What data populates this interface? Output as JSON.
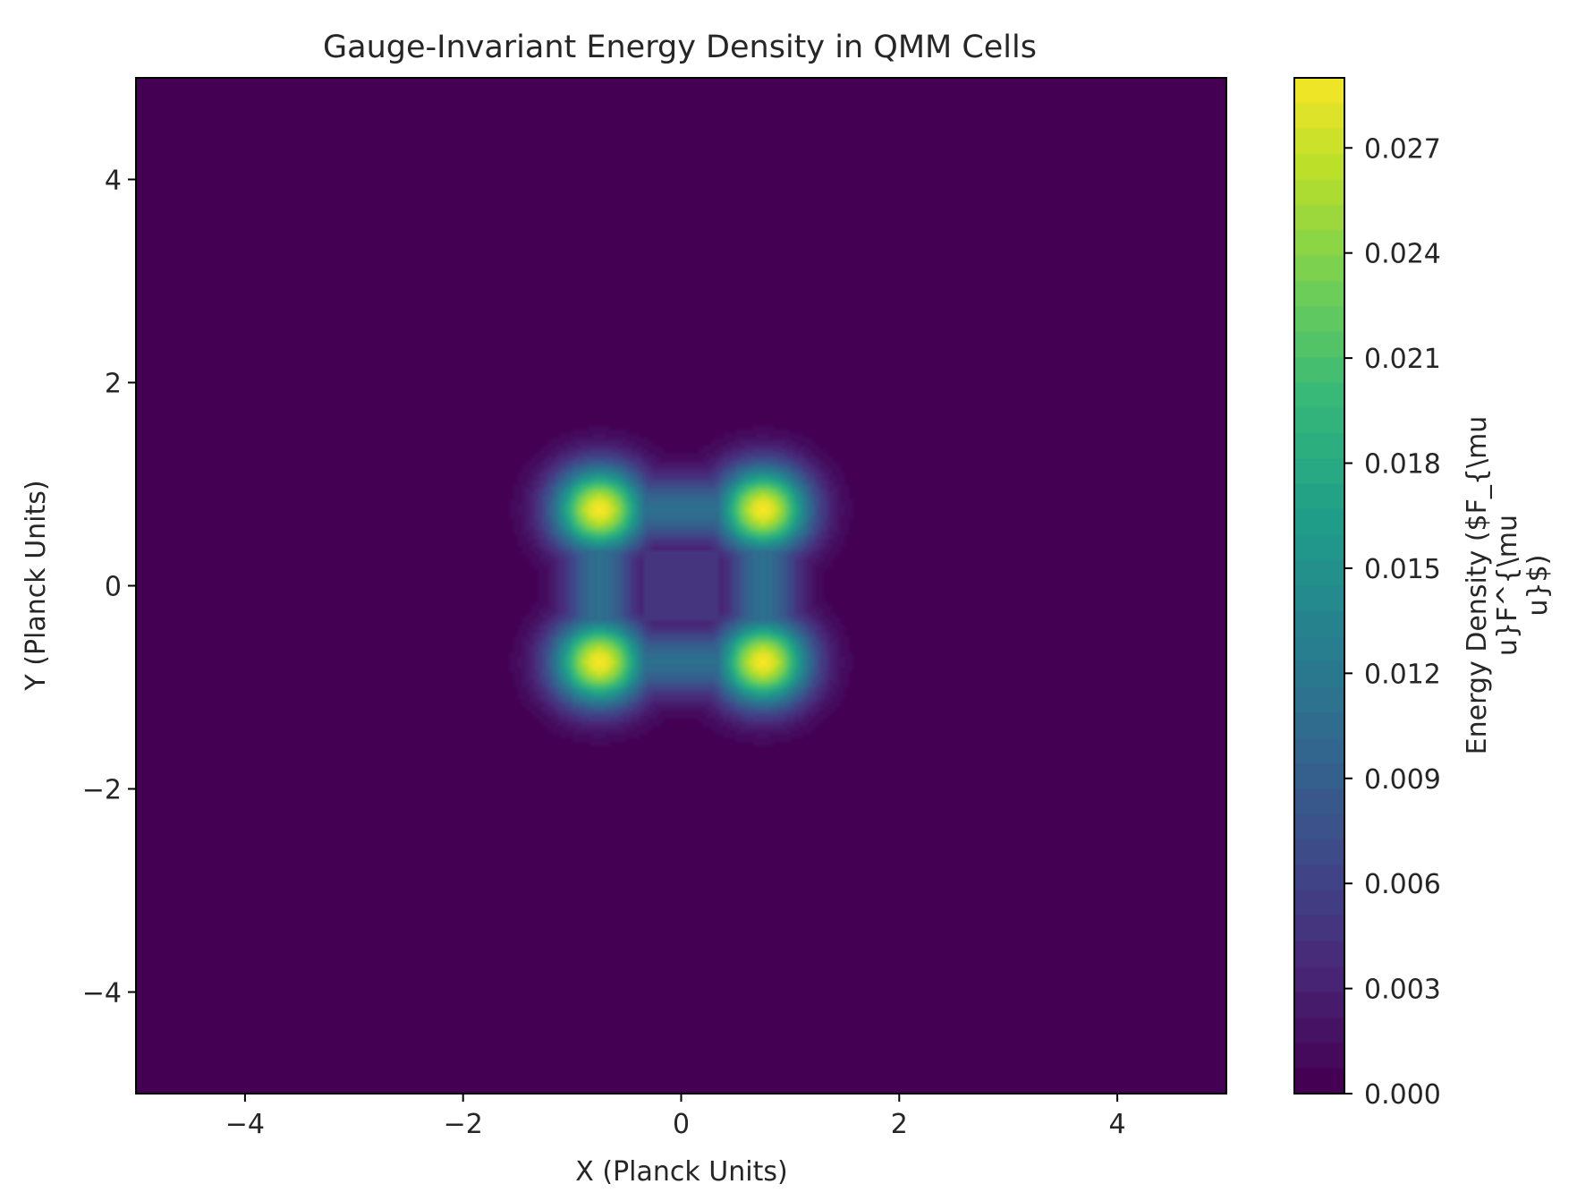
{
  "chart_data": {
    "type": "heatmap",
    "title": "Gauge-Invariant Energy Density in QMM Cells",
    "xlabel": "X (Planck Units)",
    "ylabel": "Y (Planck Units)",
    "xlim": [
      -5,
      5
    ],
    "ylim": [
      -5,
      5
    ],
    "x_ticks": [
      -4,
      -2,
      0,
      2,
      4
    ],
    "y_ticks": [
      -4,
      -2,
      0,
      2,
      4
    ],
    "x_tick_labels": [
      "−4",
      "−2",
      "0",
      "2",
      "4"
    ],
    "y_tick_labels": [
      "−4",
      "−2",
      "0",
      "2",
      "4"
    ],
    "colormap": "viridis",
    "colorbar": {
      "label_lines": [
        "Energy Density ($F_{\\mu",
        "u}F^{\\mu",
        "u}$)"
      ],
      "range": [
        0,
        0.029
      ],
      "ticks": [
        0,
        0.003,
        0.006,
        0.009,
        0.012,
        0.015,
        0.018,
        0.021,
        0.024,
        0.027
      ],
      "tick_labels": [
        "0.000",
        "0.003",
        "0.006",
        "0.009",
        "0.012",
        "0.015",
        "0.018",
        "0.021",
        "0.024",
        "0.027"
      ]
    },
    "peaks": [
      {
        "x": -0.75,
        "y": 0.75,
        "value": 0.029
      },
      {
        "x": 0.75,
        "y": 0.75,
        "value": 0.029
      },
      {
        "x": -0.75,
        "y": -0.75,
        "value": 0.029
      },
      {
        "x": 0.75,
        "y": -0.75,
        "value": 0.029
      }
    ],
    "center_value": 0.0045,
    "bridge_value": 0.011,
    "background_value": 0.0,
    "grid": false
  }
}
